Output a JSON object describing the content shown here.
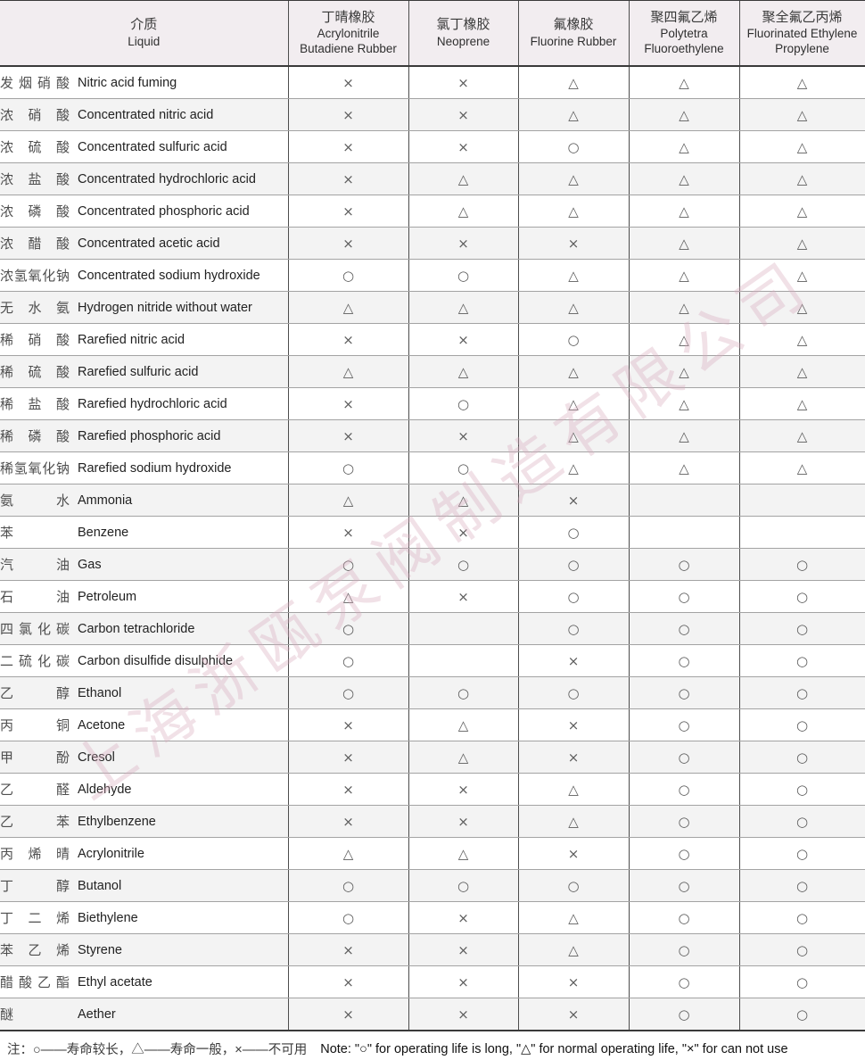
{
  "colors": {
    "header_bg": "#f2edf0",
    "stripe_bg": "#f3f3f3",
    "border_dark": "#3a3a3a",
    "border_column": "#4d4d4d",
    "border_row": "#a3a3a3",
    "symbol_color": "#5d5d5d",
    "watermark_color": "#d8abbd"
  },
  "symbols": {
    "long_life": "○",
    "normal_life": "△",
    "not_usable": "×",
    "empty": ""
  },
  "table": {
    "header": {
      "liquid": {
        "cn": "介质",
        "en": "Liquid"
      },
      "materials": [
        {
          "cn": "丁晴橡胶",
          "en": "Acrylonitrile Butadiene Rubber"
        },
        {
          "cn": "氯丁橡胶",
          "en": "Neoprene"
        },
        {
          "cn": "氟橡胶",
          "en": "Fluorine Rubber"
        },
        {
          "cn": "聚四氟乙烯",
          "en": "Polytetra Fluoroethylene"
        },
        {
          "cn": "聚全氟乙丙烯",
          "en": "Fluorinated Ethylene Propylene"
        }
      ]
    },
    "rows": [
      {
        "cn": "发烟硝酸",
        "en": "Nitric acid fuming",
        "values": [
          "×",
          "×",
          "△",
          "△",
          "△"
        ]
      },
      {
        "cn": "浓硝酸",
        "en": "Concentrated nitric acid",
        "values": [
          "×",
          "×",
          "△",
          "△",
          "△"
        ]
      },
      {
        "cn": "浓硫酸",
        "en": "Concentrated sulfuric acid",
        "values": [
          "×",
          "×",
          "○",
          "△",
          "△"
        ]
      },
      {
        "cn": "浓盐酸",
        "en": "Concentrated hydrochloric acid",
        "values": [
          "×",
          "△",
          "△",
          "△",
          "△"
        ]
      },
      {
        "cn": "浓磷酸",
        "en": "Concentrated phosphoric acid",
        "values": [
          "×",
          "△",
          "△",
          "△",
          "△"
        ]
      },
      {
        "cn": "浓醋酸",
        "en": "Concentrated acetic acid",
        "values": [
          "×",
          "×",
          "×",
          "△",
          "△"
        ]
      },
      {
        "cn": "浓氢氧化钠",
        "en": "Concentrated sodium hydroxide",
        "values": [
          "○",
          "○",
          "△",
          "△",
          "△"
        ]
      },
      {
        "cn": "无水氨",
        "en": "Hydrogen nitride without water",
        "values": [
          "△",
          "△",
          "△",
          "△",
          "△"
        ]
      },
      {
        "cn": "稀硝酸",
        "en": "Rarefied nitric acid",
        "values": [
          "×",
          "×",
          "○",
          "△",
          "△"
        ]
      },
      {
        "cn": "稀硫酸",
        "en": "Rarefied sulfuric acid",
        "values": [
          "△",
          "△",
          "△",
          "△",
          "△"
        ]
      },
      {
        "cn": "稀盐酸",
        "en": "Rarefied hydrochloric acid",
        "values": [
          "×",
          "○",
          "△",
          "△",
          "△"
        ]
      },
      {
        "cn": "稀磷酸",
        "en": "Rarefied phosphoric acid",
        "values": [
          "×",
          "×",
          "△",
          "△",
          "△"
        ]
      },
      {
        "cn": "稀氢氧化钠",
        "en": "Rarefied sodium hydroxide",
        "values": [
          "○",
          "○",
          "△",
          "△",
          "△"
        ]
      },
      {
        "cn": "氨水",
        "en": "Ammonia",
        "values": [
          "△",
          "△",
          "×",
          "",
          ""
        ]
      },
      {
        "cn": "苯",
        "en": "Benzene",
        "values": [
          "×",
          "×",
          "○",
          "",
          ""
        ]
      },
      {
        "cn": "汽油",
        "en": "Gas",
        "values": [
          "○",
          "○",
          "○",
          "○",
          "○"
        ]
      },
      {
        "cn": "石油",
        "en": "Petroleum",
        "values": [
          "△",
          "×",
          "○",
          "○",
          "○"
        ]
      },
      {
        "cn": "四氯化碳",
        "en": "Carbon tetrachloride",
        "values": [
          "○",
          "",
          "○",
          "○",
          "○"
        ]
      },
      {
        "cn": "二硫化碳",
        "en": "Carbon disulfide disulphide",
        "values": [
          "○",
          "",
          "×",
          "○",
          "○"
        ]
      },
      {
        "cn": "乙醇",
        "en": "Ethanol",
        "values": [
          "○",
          "○",
          "○",
          "○",
          "○"
        ]
      },
      {
        "cn": "丙铜",
        "en": "Acetone",
        "values": [
          "×",
          "△",
          "×",
          "○",
          "○"
        ]
      },
      {
        "cn": "甲酚",
        "en": "Cresol",
        "values": [
          "×",
          "△",
          "×",
          "○",
          "○"
        ]
      },
      {
        "cn": "乙醛",
        "en": "Aldehyde",
        "values": [
          "×",
          "×",
          "△",
          "○",
          "○"
        ]
      },
      {
        "cn": "乙苯",
        "en": "Ethylbenzene",
        "values": [
          "×",
          "×",
          "△",
          "○",
          "○"
        ]
      },
      {
        "cn": "丙烯晴",
        "en": "Acrylonitrile",
        "values": [
          "△",
          "△",
          "×",
          "○",
          "○"
        ]
      },
      {
        "cn": "丁醇",
        "en": "Butanol",
        "values": [
          "○",
          "○",
          "○",
          "○",
          "○"
        ]
      },
      {
        "cn": "丁二烯",
        "en": "Biethylene",
        "values": [
          "○",
          "×",
          "△",
          "○",
          "○"
        ]
      },
      {
        "cn": "苯乙烯",
        "en": "Styrene",
        "values": [
          "×",
          "×",
          "△",
          "○",
          "○"
        ]
      },
      {
        "cn": "醋酸乙酯",
        "en": "Ethyl acetate",
        "values": [
          "×",
          "×",
          "×",
          "○",
          "○"
        ]
      },
      {
        "cn": "醚",
        "en": "Aether",
        "values": [
          "×",
          "×",
          "×",
          "○",
          "○"
        ]
      }
    ]
  },
  "footer": {
    "note_cn": "注：○——寿命较长，△——寿命一般，×——不可用",
    "note_en": "Note: \"○\" for operating life is long, \"△\" for normal operating life, \"×\" for can not use"
  },
  "watermark": {
    "text": "上海浙瓯泵阀制造有限公司"
  }
}
